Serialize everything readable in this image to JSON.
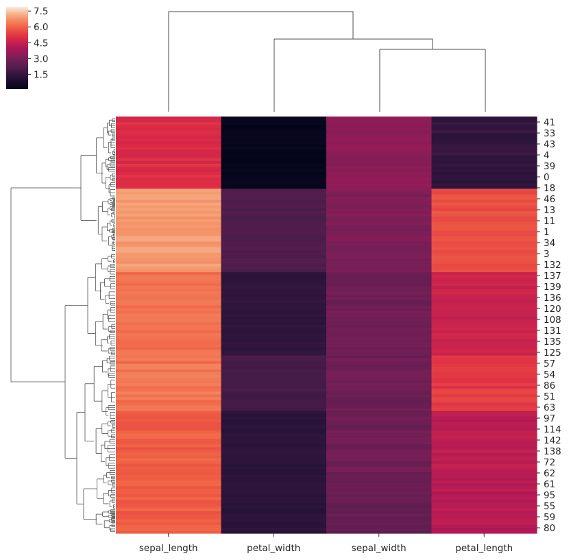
{
  "chart_data": {
    "type": "heatmap",
    "title": "",
    "xlabel": "",
    "ylabel": "",
    "columns": [
      "sepal_length",
      "petal_width",
      "sepal_width",
      "petal_length"
    ],
    "row_tick_labels": [
      "41",
      "33",
      "43",
      "4",
      "39",
      "0",
      "18",
      "46",
      "13",
      "11",
      "1",
      "34",
      "3",
      "132",
      "137",
      "139",
      "136",
      "120",
      "108",
      "131",
      "135",
      "125",
      "57",
      "54",
      "86",
      "51",
      "63",
      "97",
      "114",
      "142",
      "138",
      "72",
      "62",
      "61",
      "95",
      "55",
      "59",
      "80"
    ],
    "colorbar": {
      "ticks": [
        "7.5",
        "6.0",
        "4.5",
        "3.0",
        "1.5"
      ],
      "tick_values": [
        7.5,
        6.0,
        4.5,
        3.0,
        1.5
      ],
      "min": 0.1,
      "max": 7.9
    },
    "row_blocks": [
      {
        "rows": 26,
        "values": [
          5.0,
          0.2,
          3.4,
          1.5
        ]
      },
      {
        "rows": 30,
        "values": [
          6.9,
          2.1,
          3.1,
          5.6
        ]
      },
      {
        "rows": 30,
        "values": [
          6.2,
          1.4,
          2.8,
          4.6
        ]
      },
      {
        "rows": 20,
        "values": [
          6.3,
          1.9,
          2.8,
          5.3
        ]
      },
      {
        "rows": 24,
        "values": [
          5.9,
          1.3,
          2.8,
          4.3
        ]
      },
      {
        "rows": 20,
        "values": [
          5.9,
          1.3,
          2.6,
          4.2
        ]
      }
    ]
  }
}
